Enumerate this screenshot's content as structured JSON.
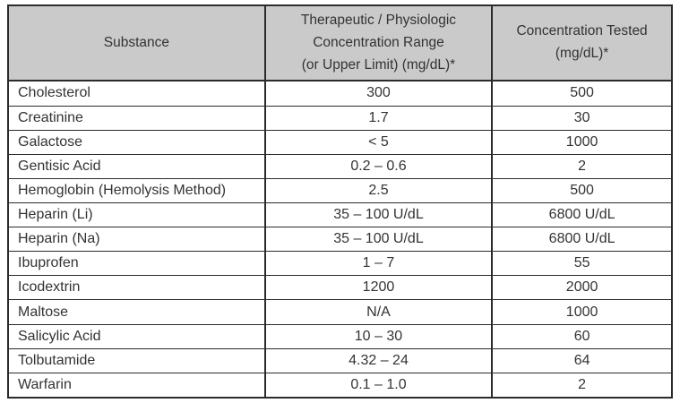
{
  "table": {
    "headers": [
      "Substance",
      "Therapeutic / Physiologic\nConcentration Range\n(or Upper Limit) (mg/dL)*",
      "Concentration Tested\n(mg/dL)*"
    ],
    "rows": [
      [
        "Cholesterol",
        "300",
        "500"
      ],
      [
        "Creatinine",
        "1.7",
        "30"
      ],
      [
        "Galactose",
        "< 5",
        "1000"
      ],
      [
        "Gentisic Acid",
        "0.2 – 0.6",
        "2"
      ],
      [
        "Hemoglobin (Hemolysis Method)",
        "2.5",
        "500"
      ],
      [
        "Heparin (Li)",
        "35 – 100 U/dL",
        "6800 U/dL"
      ],
      [
        "Heparin (Na)",
        "35 – 100 U/dL",
        "6800 U/dL"
      ],
      [
        "Ibuprofen",
        "1 – 7",
        "55"
      ],
      [
        "Icodextrin",
        "1200",
        "2000"
      ],
      [
        "Maltose",
        "N/A",
        "1000"
      ],
      [
        "Salicylic Acid",
        "10 – 30",
        "60"
      ],
      [
        "Tolbutamide",
        "4.32 – 24",
        "64"
      ],
      [
        "Warfarin",
        "0.1 – 1.0",
        "2"
      ]
    ],
    "colors": {
      "header_bg": "#cacaca",
      "border": "#2b2b2b",
      "text": "#333333"
    }
  }
}
